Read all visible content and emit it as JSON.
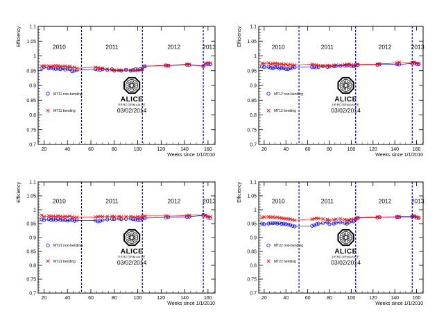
{
  "chart_data": [
    {
      "type": "scatter",
      "xlabel": "Weeks since 1/1/2010",
      "ylabel": "Efficiency",
      "xlim": [
        15,
        166
      ],
      "ylim": [
        0.7,
        1.1
      ],
      "xticks": [
        20,
        40,
        60,
        80,
        100,
        120,
        140,
        160
      ],
      "yticks": [
        0.7,
        0.75,
        0.8,
        0.85,
        0.9,
        0.95,
        1.0,
        1.05,
        1.1
      ],
      "ytick_labels": [
        "0.7",
        "0.75",
        "0.8",
        "0.85",
        "0.9",
        "0.95",
        "1",
        "1.05",
        "1.1"
      ],
      "year_labels": [
        {
          "text": "2010",
          "x": 33
        },
        {
          "text": "2011",
          "x": 78
        },
        {
          "text": "2012",
          "x": 131
        },
        {
          "text": "2013",
          "x": 161
        }
      ],
      "year_boundaries": [
        52,
        104,
        156
      ],
      "logo_text": "ALICE",
      "logo_subtext": "PERFORMANCE",
      "date_text": "03/02/2014",
      "series": [
        {
          "name": "MT11 non-bending",
          "marker": "circle",
          "color": "#0000ff",
          "x": [
            18,
            20,
            24,
            26,
            28,
            30,
            32,
            34,
            36,
            38,
            40,
            42,
            44,
            46,
            48,
            64,
            66,
            68,
            70,
            74,
            78,
            80,
            84,
            86,
            90,
            94,
            96,
            98,
            100,
            102,
            104,
            106,
            124,
            126,
            142,
            144,
            156,
            158,
            160,
            162
          ],
          "y": [
            0.958,
            0.962,
            0.958,
            0.96,
            0.957,
            0.956,
            0.957,
            0.955,
            0.958,
            0.954,
            0.957,
            0.955,
            0.948,
            0.95,
            0.951,
            0.955,
            0.954,
            0.953,
            0.955,
            0.952,
            0.955,
            0.95,
            0.951,
            0.95,
            0.953,
            0.95,
            0.952,
            0.955,
            0.954,
            0.955,
            0.955,
            0.965,
            0.968,
            0.967,
            0.97,
            0.969,
            0.966,
            0.971,
            0.973,
            0.972
          ]
        },
        {
          "name": "MT11 bending",
          "marker": "cross",
          "color": "#ff0000",
          "x": [
            18,
            20,
            24,
            26,
            28,
            30,
            32,
            34,
            36,
            38,
            40,
            42,
            44,
            46,
            48,
            64,
            66,
            68,
            70,
            74,
            78,
            80,
            84,
            86,
            90,
            94,
            96,
            98,
            100,
            102,
            104,
            106,
            124,
            126,
            142,
            144,
            156,
            158,
            160,
            162
          ],
          "y": [
            0.965,
            0.967,
            0.966,
            0.964,
            0.966,
            0.967,
            0.966,
            0.965,
            0.964,
            0.966,
            0.963,
            0.965,
            0.96,
            0.962,
            0.958,
            0.962,
            0.96,
            0.958,
            0.958,
            0.955,
            0.953,
            0.952,
            0.952,
            0.951,
            0.953,
            0.951,
            0.952,
            0.95,
            0.951,
            0.952,
            0.958,
            0.965,
            0.968,
            0.967,
            0.972,
            0.971,
            0.965,
            0.975,
            0.977,
            0.976
          ]
        }
      ]
    },
    {
      "type": "scatter",
      "xlabel": "Weeks since 1/1/2010",
      "ylabel": "Efficiency",
      "xlim": [
        15,
        166
      ],
      "ylim": [
        0.7,
        1.1
      ],
      "xticks": [
        20,
        40,
        60,
        80,
        100,
        120,
        140,
        160
      ],
      "yticks": [
        0.7,
        0.75,
        0.8,
        0.85,
        0.9,
        0.95,
        1.0,
        1.05,
        1.1
      ],
      "ytick_labels": [
        "0.7",
        "0.75",
        "0.8",
        "0.85",
        "0.9",
        "0.95",
        "1",
        "1.05",
        "1.1"
      ],
      "year_labels": [
        {
          "text": "2010",
          "x": 33
        },
        {
          "text": "2011",
          "x": 78
        },
        {
          "text": "2012",
          "x": 131
        },
        {
          "text": "2013",
          "x": 161
        }
      ],
      "year_boundaries": [
        52,
        104,
        156
      ],
      "logo_text": "ALICE",
      "logo_subtext": "PERFORMANCE",
      "date_text": "03/02/2014",
      "series": [
        {
          "name": "MT12 non-bending",
          "marker": "circle",
          "color": "#0000ff",
          "x": [
            18,
            20,
            24,
            26,
            28,
            30,
            32,
            34,
            36,
            38,
            40,
            42,
            44,
            46,
            48,
            64,
            66,
            68,
            70,
            74,
            78,
            80,
            84,
            86,
            90,
            94,
            96,
            98,
            100,
            102,
            104,
            106,
            124,
            126,
            142,
            144,
            156,
            158,
            160,
            162
          ],
          "y": [
            0.964,
            0.962,
            0.963,
            0.96,
            0.958,
            0.962,
            0.963,
            0.957,
            0.96,
            0.958,
            0.956,
            0.955,
            0.958,
            0.96,
            0.962,
            0.962,
            0.963,
            0.961,
            0.963,
            0.965,
            0.963,
            0.964,
            0.965,
            0.966,
            0.966,
            0.967,
            0.968,
            0.969,
            0.966,
            0.965,
            0.968,
            0.97,
            0.97,
            0.971,
            0.972,
            0.971,
            0.975,
            0.976,
            0.973,
            0.972
          ]
        },
        {
          "name": "MT12 bending",
          "marker": "cross",
          "color": "#ff0000",
          "x": [
            18,
            20,
            24,
            26,
            28,
            30,
            32,
            34,
            36,
            38,
            40,
            42,
            44,
            46,
            48,
            64,
            66,
            68,
            70,
            74,
            78,
            80,
            84,
            86,
            90,
            94,
            96,
            98,
            100,
            102,
            104,
            106,
            124,
            126,
            142,
            144,
            156,
            158,
            160,
            162
          ],
          "y": [
            0.975,
            0.974,
            0.976,
            0.972,
            0.974,
            0.975,
            0.974,
            0.972,
            0.973,
            0.97,
            0.972,
            0.968,
            0.971,
            0.968,
            0.969,
            0.972,
            0.97,
            0.969,
            0.968,
            0.967,
            0.968,
            0.967,
            0.968,
            0.969,
            0.968,
            0.97,
            0.971,
            0.972,
            0.97,
            0.968,
            0.97,
            0.971,
            0.972,
            0.973,
            0.976,
            0.978,
            0.977,
            0.979,
            0.975,
            0.974
          ]
        }
      ]
    },
    {
      "type": "scatter",
      "xlabel": "Weeks since 1/1/2010",
      "ylabel": "Efficiency",
      "xlim": [
        15,
        166
      ],
      "ylim": [
        0.7,
        1.1
      ],
      "xticks": [
        20,
        40,
        60,
        80,
        100,
        120,
        140,
        160
      ],
      "yticks": [
        0.7,
        0.75,
        0.8,
        0.85,
        0.9,
        0.95,
        1.0,
        1.05,
        1.1
      ],
      "ytick_labels": [
        "0.7",
        "0.75",
        "0.8",
        "0.85",
        "0.9",
        "0.95",
        "1",
        "1.05",
        "1.1"
      ],
      "year_labels": [
        {
          "text": "2010",
          "x": 33
        },
        {
          "text": "2011",
          "x": 78
        },
        {
          "text": "2012",
          "x": 131
        },
        {
          "text": "2013",
          "x": 161
        }
      ],
      "year_boundaries": [
        52,
        104,
        156
      ],
      "logo_text": "ALICE",
      "logo_subtext": "PERFORMANCE",
      "date_text": "03/02/2014",
      "series": [
        {
          "name": "MT21 non-bending",
          "marker": "circle",
          "color": "#0000ff",
          "x": [
            18,
            20,
            24,
            26,
            28,
            30,
            32,
            34,
            36,
            38,
            40,
            42,
            44,
            46,
            48,
            64,
            66,
            68,
            70,
            74,
            78,
            80,
            84,
            86,
            90,
            94,
            96,
            98,
            100,
            102,
            104,
            106,
            124,
            126,
            142,
            144,
            156,
            158,
            160,
            162
          ],
          "y": [
            0.965,
            0.963,
            0.966,
            0.964,
            0.965,
            0.963,
            0.966,
            0.964,
            0.962,
            0.963,
            0.961,
            0.962,
            0.964,
            0.96,
            0.962,
            0.961,
            0.958,
            0.96,
            0.962,
            0.965,
            0.967,
            0.966,
            0.968,
            0.966,
            0.967,
            0.968,
            0.966,
            0.965,
            0.964,
            0.963,
            0.968,
            0.97,
            0.972,
            0.973,
            0.974,
            0.975,
            0.98,
            0.978,
            0.972,
            0.97
          ]
        },
        {
          "name": "MT21 bending",
          "marker": "cross",
          "color": "#ff0000",
          "x": [
            18,
            20,
            24,
            26,
            28,
            30,
            32,
            34,
            36,
            38,
            40,
            42,
            44,
            46,
            48,
            64,
            66,
            68,
            70,
            74,
            78,
            80,
            84,
            86,
            90,
            94,
            96,
            98,
            100,
            102,
            104,
            106,
            124,
            126,
            142,
            144,
            156,
            158,
            160,
            162
          ],
          "y": [
            0.98,
            0.975,
            0.978,
            0.976,
            0.977,
            0.975,
            0.978,
            0.976,
            0.974,
            0.976,
            0.975,
            0.977,
            0.974,
            0.972,
            0.973,
            0.974,
            0.975,
            0.976,
            0.975,
            0.976,
            0.977,
            0.975,
            0.976,
            0.974,
            0.975,
            0.976,
            0.974,
            0.973,
            0.975,
            0.974,
            0.976,
            0.978,
            0.978,
            0.977,
            0.979,
            0.98,
            0.982,
            0.98,
            0.976,
            0.975
          ]
        }
      ]
    },
    {
      "type": "scatter",
      "xlabel": "Weeks since 1/1/2010",
      "ylabel": "Efficiency",
      "xlim": [
        15,
        166
      ],
      "ylim": [
        0.7,
        1.1
      ],
      "xticks": [
        20,
        40,
        60,
        80,
        100,
        120,
        140,
        160
      ],
      "yticks": [
        0.7,
        0.75,
        0.8,
        0.85,
        0.9,
        0.95,
        1.0,
        1.05,
        1.1
      ],
      "ytick_labels": [
        "0.7",
        "0.75",
        "0.8",
        "0.85",
        "0.9",
        "0.95",
        "1",
        "1.05",
        "1.1"
      ],
      "year_labels": [
        {
          "text": "2010",
          "x": 33
        },
        {
          "text": "2011",
          "x": 78
        },
        {
          "text": "2012",
          "x": 131
        },
        {
          "text": "2013",
          "x": 161
        }
      ],
      "year_boundaries": [
        52,
        104,
        156
      ],
      "logo_text": "ALICE",
      "logo_subtext": "PERFORMANCE",
      "date_text": "03/02/2014",
      "series": [
        {
          "name": "MT22 non-bending",
          "marker": "circle",
          "color": "#0000ff",
          "x": [
            18,
            20,
            24,
            26,
            28,
            30,
            32,
            34,
            36,
            38,
            40,
            42,
            44,
            46,
            48,
            64,
            66,
            68,
            70,
            74,
            78,
            80,
            84,
            86,
            90,
            94,
            96,
            98,
            100,
            102,
            104,
            106,
            124,
            126,
            142,
            144,
            156,
            158,
            160,
            162
          ],
          "y": [
            0.95,
            0.948,
            0.95,
            0.952,
            0.951,
            0.953,
            0.95,
            0.952,
            0.949,
            0.95,
            0.948,
            0.947,
            0.945,
            0.942,
            0.94,
            0.942,
            0.944,
            0.948,
            0.95,
            0.952,
            0.955,
            0.948,
            0.95,
            0.953,
            0.955,
            0.952,
            0.95,
            0.955,
            0.96,
            0.958,
            0.965,
            0.97,
            0.972,
            0.973,
            0.974,
            0.973,
            0.975,
            0.976,
            0.972,
            0.97
          ]
        },
        {
          "name": "MT22 bending",
          "marker": "cross",
          "color": "#ff0000",
          "x": [
            18,
            20,
            24,
            26,
            28,
            30,
            32,
            34,
            36,
            38,
            40,
            42,
            44,
            46,
            48,
            64,
            66,
            68,
            70,
            74,
            78,
            80,
            84,
            86,
            90,
            94,
            96,
            98,
            100,
            102,
            104,
            106,
            124,
            126,
            142,
            144,
            156,
            158,
            160,
            162
          ],
          "y": [
            0.972,
            0.974,
            0.975,
            0.973,
            0.974,
            0.972,
            0.973,
            0.971,
            0.97,
            0.969,
            0.968,
            0.967,
            0.966,
            0.964,
            0.962,
            0.966,
            0.968,
            0.97,
            0.969,
            0.967,
            0.965,
            0.962,
            0.964,
            0.966,
            0.968,
            0.965,
            0.962,
            0.964,
            0.966,
            0.965,
            0.968,
            0.972,
            0.974,
            0.973,
            0.975,
            0.976,
            0.977,
            0.978,
            0.974,
            0.972
          ]
        }
      ]
    }
  ]
}
